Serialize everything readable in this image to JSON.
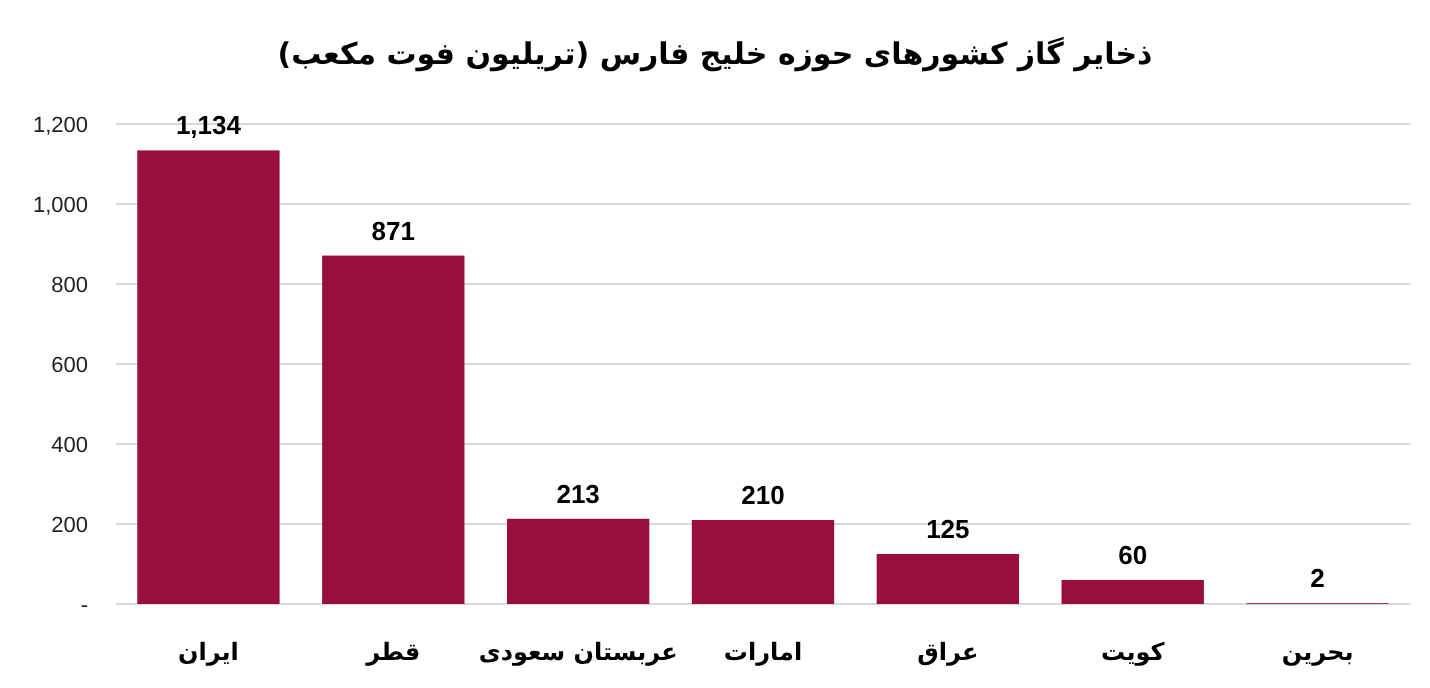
{
  "chart_data": {
    "type": "bar",
    "title": "ذخایر گاز کشورهای حوزه خلیج فارس (تریلیون فوت مکعب)",
    "categories": [
      "ایران",
      "قطر",
      "عربستان سعودی",
      "امارات",
      "عراق",
      "کویت",
      "بحرین"
    ],
    "values": [
      1134,
      871,
      213,
      210,
      125,
      60,
      2
    ],
    "color": "#990d3f",
    "ylim": [
      0,
      1200
    ],
    "yticks": [
      {
        "value": 0,
        "label": "-"
      },
      200,
      400,
      600,
      800,
      "1,000",
      "1,200"
    ],
    "value_labels": [
      "1,134",
      "871",
      "213",
      "210",
      "125",
      "60",
      "2"
    ],
    "grid": "y"
  }
}
